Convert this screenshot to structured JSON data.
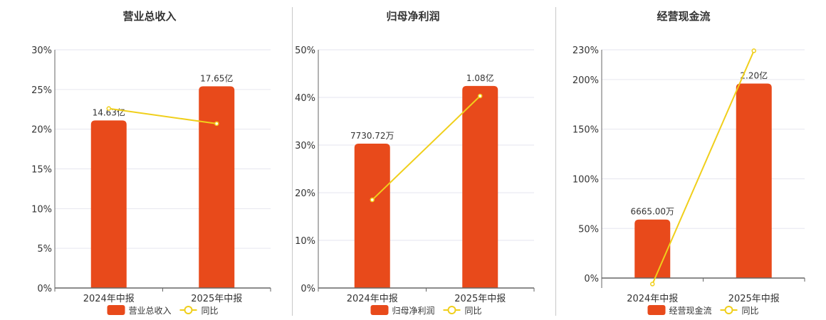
{
  "colors": {
    "bar": "#E84A1B",
    "line": "#F0CF1B",
    "grid": "#e6e6ef",
    "axis": "#666666"
  },
  "chart_data": [
    {
      "type": "bar",
      "title": "营业总收入",
      "categories": [
        "2024年中报",
        "2025年中报"
      ],
      "bar_series": {
        "name": "营业总收入",
        "values": [
          21.1,
          25.4
        ],
        "labels": [
          "14.63亿",
          "17.65亿"
        ]
      },
      "line_series": {
        "name": "同比",
        "values": [
          22.6,
          20.7
        ]
      },
      "ylim": [
        0,
        30
      ],
      "yticks": [
        0,
        5,
        10,
        15,
        20,
        25,
        30
      ],
      "ytick_labels": [
        "0%",
        "5%",
        "10%",
        "15%",
        "20%",
        "25%",
        "30%"
      ],
      "grid": true,
      "legend": "bottom"
    },
    {
      "type": "bar",
      "title": "归母净利润",
      "categories": [
        "2024年中报",
        "2025年中报"
      ],
      "bar_series": {
        "name": "归母净利润",
        "values": [
          30.3,
          42.4
        ],
        "labels": [
          "7730.72万",
          "1.08亿"
        ]
      },
      "line_series": {
        "name": "同比",
        "values": [
          18.5,
          40.3
        ]
      },
      "ylim": [
        0,
        50
      ],
      "yticks": [
        0,
        10,
        20,
        30,
        40,
        50
      ],
      "ytick_labels": [
        "0%",
        "10%",
        "20%",
        "30%",
        "40%",
        "50%"
      ],
      "grid": true,
      "legend": "bottom"
    },
    {
      "type": "bar",
      "title": "经营现金流",
      "categories": [
        "2024年中报",
        "2025年中报"
      ],
      "bar_series": {
        "name": "经营现金流",
        "values": [
          59,
          196
        ],
        "labels": [
          "6665.00万",
          "2.20亿"
        ]
      },
      "line_series": {
        "name": "同比",
        "values": [
          -6,
          229
        ]
      },
      "ylim": [
        -10,
        230
      ],
      "yticks": [
        0,
        50,
        100,
        150,
        200,
        230
      ],
      "ytick_labels": [
        "0%",
        "50%",
        "100%",
        "150%",
        "200%",
        "230%"
      ],
      "grid": true,
      "legend": "bottom"
    }
  ]
}
